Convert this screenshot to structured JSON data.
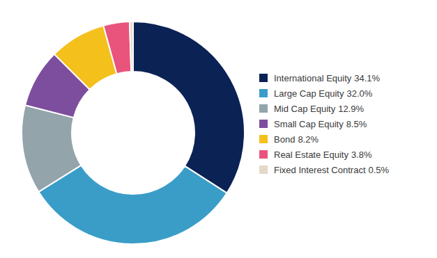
{
  "chart_data": {
    "type": "pie",
    "categories": [
      "International Equity",
      "Large Cap Equity",
      "Mid Cap Equity",
      "Small Cap Equity",
      "Bond",
      "Real Estate Equity",
      "Fixed Interest Contract"
    ],
    "values": [
      34.1,
      32.0,
      12.9,
      8.5,
      8.2,
      3.8,
      0.5
    ],
    "value_labels": [
      "34.1%",
      "32.0%",
      "12.9%",
      "8.5%",
      "8.2%",
      "3.8%",
      "0.5%"
    ],
    "colors": [
      "#0b2255",
      "#3a9dc8",
      "#93a4ab",
      "#7e4e9e",
      "#f4c01c",
      "#e9547c",
      "#e3d9c6"
    ],
    "legend": "right"
  }
}
